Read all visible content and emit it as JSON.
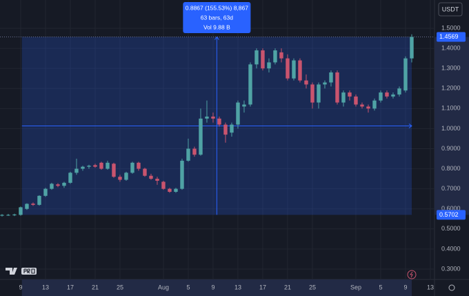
{
  "chart_data": {
    "type": "candlestick",
    "currency": "USDT",
    "up_color": "#4fa3a5",
    "down_color": "#c9546e",
    "open": [
      0.566,
      0.568,
      0.568,
      0.57,
      0.6,
      0.626,
      0.62,
      0.665,
      0.7,
      0.722,
      0.715,
      0.73,
      0.78,
      0.8,
      0.81,
      0.818,
      0.83,
      0.8,
      0.825,
      0.76,
      0.745,
      0.78,
      0.83,
      0.8,
      0.765,
      0.75,
      0.735,
      0.7,
      0.685,
      0.7,
      0.84,
      0.9,
      0.87,
      1.05,
      1.06,
      1.05,
      1.02,
      0.98,
      1.02,
      1.11,
      1.12,
      1.32,
      1.39,
      1.3,
      1.33,
      1.38,
      1.35,
      1.25,
      1.34,
      1.24,
      1.22,
      1.13,
      1.22,
      1.23,
      1.28,
      1.13,
      1.18,
      1.16,
      1.12,
      1.11,
      1.1,
      1.14,
      1.18,
      1.16,
      1.17,
      1.19,
      1.35
    ],
    "high": [
      0.574,
      0.575,
      0.576,
      0.612,
      0.628,
      0.632,
      0.668,
      0.705,
      0.73,
      0.728,
      0.735,
      0.785,
      0.85,
      0.815,
      0.82,
      0.825,
      0.835,
      0.84,
      0.83,
      0.77,
      0.785,
      0.835,
      0.835,
      0.805,
      0.775,
      0.76,
      0.74,
      0.705,
      0.705,
      0.85,
      0.95,
      0.91,
      1.1,
      1.14,
      1.08,
      1.06,
      1.03,
      1.03,
      1.14,
      1.14,
      1.33,
      1.4,
      1.4,
      1.35,
      1.4,
      1.4,
      1.37,
      1.35,
      1.35,
      1.27,
      1.23,
      1.23,
      1.24,
      1.29,
      1.29,
      1.19,
      1.19,
      1.17,
      1.13,
      1.12,
      1.15,
      1.19,
      1.19,
      1.18,
      1.21,
      1.36,
      1.47
    ],
    "low": [
      0.562,
      0.565,
      0.564,
      0.566,
      0.595,
      0.615,
      0.616,
      0.66,
      0.695,
      0.708,
      0.705,
      0.725,
      0.77,
      0.79,
      0.8,
      0.805,
      0.795,
      0.795,
      0.755,
      0.735,
      0.74,
      0.775,
      0.79,
      0.76,
      0.745,
      0.72,
      0.695,
      0.68,
      0.68,
      0.695,
      0.835,
      0.86,
      0.865,
      1.03,
      1.03,
      1.01,
      0.93,
      0.96,
      1.0,
      1.08,
      1.11,
      1.3,
      1.29,
      1.28,
      1.32,
      1.33,
      1.24,
      1.24,
      1.23,
      1.2,
      1.1,
      1.1,
      1.2,
      1.21,
      1.12,
      1.11,
      1.14,
      1.11,
      1.1,
      1.08,
      1.09,
      1.13,
      1.15,
      1.15,
      1.16,
      1.18,
      1.33
    ],
    "close": [
      0.57,
      0.57,
      0.572,
      0.608,
      0.625,
      0.62,
      0.665,
      0.7,
      0.725,
      0.715,
      0.73,
      0.78,
      0.8,
      0.81,
      0.815,
      0.81,
      0.8,
      0.83,
      0.76,
      0.745,
      0.78,
      0.83,
      0.8,
      0.765,
      0.75,
      0.74,
      0.7,
      0.685,
      0.7,
      0.84,
      0.9,
      0.87,
      1.05,
      1.06,
      1.05,
      1.02,
      0.97,
      1.02,
      1.13,
      1.12,
      1.32,
      1.39,
      1.3,
      1.33,
      1.39,
      1.35,
      1.25,
      1.34,
      1.24,
      1.22,
      1.13,
      1.22,
      1.23,
      1.28,
      1.13,
      1.18,
      1.16,
      1.12,
      1.11,
      1.1,
      1.14,
      1.18,
      1.16,
      1.17,
      1.2,
      1.35,
      1.4569
    ],
    "xlim": [
      -0.33,
      69.67
    ],
    "xticks": [
      {
        "value": 3,
        "label": "9"
      },
      {
        "value": 7,
        "label": "13"
      },
      {
        "value": 11,
        "label": "17"
      },
      {
        "value": 15,
        "label": "21"
      },
      {
        "value": 19,
        "label": "25"
      },
      {
        "value": 26,
        "label": "Aug"
      },
      {
        "value": 30,
        "label": "5"
      },
      {
        "value": 34,
        "label": "9"
      },
      {
        "value": 38,
        "label": "13"
      },
      {
        "value": 42,
        "label": "17"
      },
      {
        "value": 46,
        "label": "21"
      },
      {
        "value": 50,
        "label": "25"
      },
      {
        "value": 57,
        "label": "Sep"
      },
      {
        "value": 61,
        "label": "5"
      },
      {
        "value": 65,
        "label": "9"
      },
      {
        "value": 69,
        "label": "13"
      }
    ],
    "ylim": [
      0.2483,
      1.641
    ],
    "yticks": [
      {
        "value": 0.3,
        "label": "0.3000"
      },
      {
        "value": 0.4,
        "label": "0.4000"
      },
      {
        "value": 0.5,
        "label": "0.5000"
      },
      {
        "value": 0.6,
        "label": "0.6000"
      },
      {
        "value": 0.7,
        "label": "0.7000"
      },
      {
        "value": 0.8,
        "label": "0.8000"
      },
      {
        "value": 0.9,
        "label": "0.9000"
      },
      {
        "value": 1.0,
        "label": "1.0000"
      },
      {
        "value": 1.1,
        "label": "1.1000"
      },
      {
        "value": 1.2,
        "label": "1.2000"
      },
      {
        "value": 1.3,
        "label": "1.3000"
      },
      {
        "value": 1.4,
        "label": "1.4000"
      },
      {
        "value": 1.5,
        "label": "1.5000"
      }
    ],
    "grid": true,
    "measure": {
      "start": 3.2,
      "end": 66,
      "low": 0.5702,
      "high": 1.4569,
      "lines": [
        "0.8867 (155.53%) 8,867",
        "63 bars, 63d",
        "Vol 9.88 B"
      ]
    }
  }
}
